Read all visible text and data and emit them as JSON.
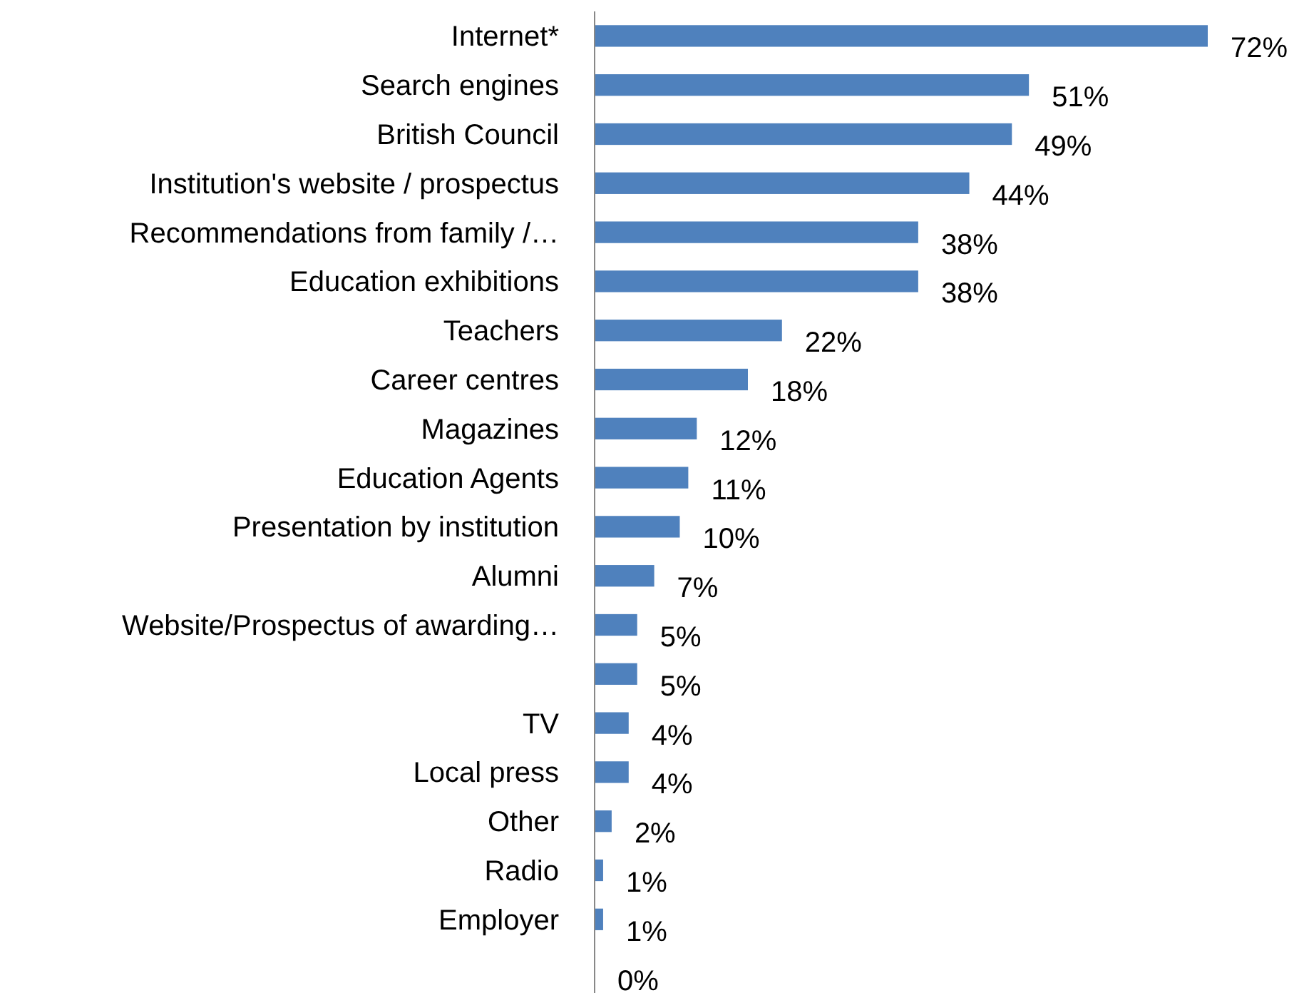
{
  "chart_data": {
    "type": "bar",
    "orientation": "horizontal",
    "categories": [
      "Internet*",
      "Search engines",
      "British Council",
      "Institution's website / prospectus",
      "Recommendations from family /…",
      "Education exhibitions",
      "Teachers",
      "Career centres",
      "Magazines",
      "Education Agents",
      "Presentation by institution",
      "Alumni",
      "Website/Prospectus of awarding…",
      null,
      "TV",
      "Local press",
      "Other",
      "Radio",
      "Employer",
      null
    ],
    "values": [
      72,
      51,
      49,
      44,
      38,
      38,
      22,
      18,
      12,
      11,
      10,
      7,
      5,
      5,
      4,
      4,
      2,
      1,
      1,
      0
    ],
    "value_labels": [
      "72%",
      "51%",
      "49%",
      "44%",
      "38%",
      "38%",
      "22%",
      "18%",
      "12%",
      "11%",
      "10%",
      "7%",
      "5%",
      "5%",
      "4%",
      "4%",
      "2%",
      "1%",
      "1%",
      "0%"
    ],
    "color": "#4f81bd",
    "xlim": [
      0,
      72
    ],
    "tick_labels": "y"
  }
}
